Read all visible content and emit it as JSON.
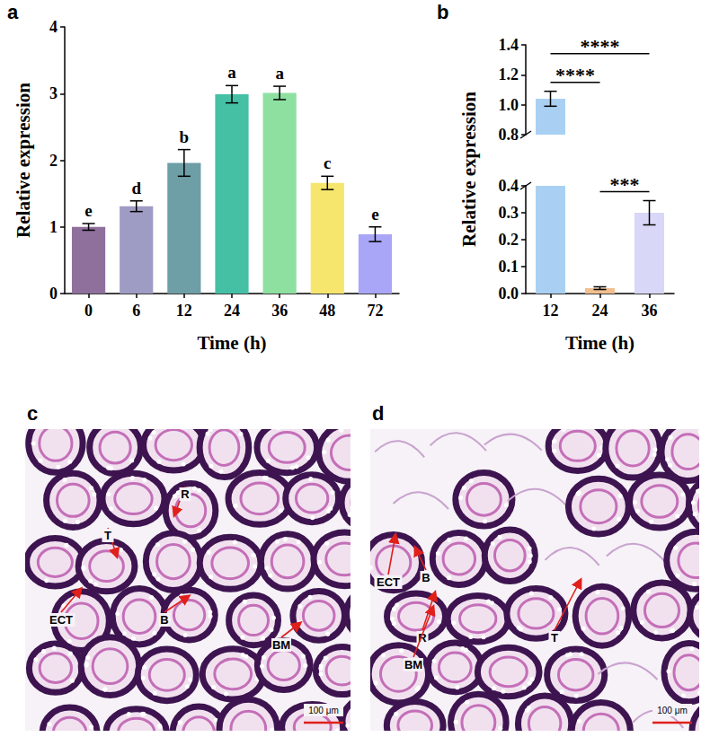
{
  "chart_data": [
    {
      "panel": "a",
      "type": "bar",
      "categories": [
        "0",
        "6",
        "12",
        "24",
        "36",
        "48",
        "72"
      ],
      "values": [
        1.0,
        1.31,
        1.96,
        2.99,
        3.01,
        1.66,
        0.89
      ],
      "errors": [
        0.05,
        0.08,
        0.2,
        0.13,
        0.1,
        0.1,
        0.11
      ],
      "letters": [
        "e",
        "d",
        "b",
        "a",
        "a",
        "c",
        "e"
      ],
      "colors": [
        "#8f6f9c",
        "#9e9cc4",
        "#6e9ea6",
        "#45c0a5",
        "#8ee0a0",
        "#f6e66d",
        "#aaa6f7"
      ],
      "x_label": "Time (h)",
      "y_label": "Relative expression",
      "ylim": [
        0,
        4
      ],
      "yticks": [
        0,
        1,
        2,
        3,
        4
      ],
      "grid": false
    },
    {
      "panel": "b",
      "type": "bar",
      "categories": [
        "12",
        "24",
        "36"
      ],
      "values": [
        1.04,
        0.02,
        0.3
      ],
      "errors": [
        0.05,
        0.005,
        0.045
      ],
      "colors": [
        "#a9d0f2",
        "#f2bf8e",
        "#d9d7f7"
      ],
      "x_label": "Time (h)",
      "y_label": "Relative expression",
      "ylim": [
        0,
        1.4
      ],
      "y_break": [
        0.4,
        0.8
      ],
      "yticks": [
        {
          "value": 0,
          "label": "0.0"
        },
        0.1,
        0.2,
        0.3,
        0.4,
        0.8,
        {
          "value": 1,
          "label": "1.0"
        },
        1.2,
        1.4
      ],
      "significance": [
        {
          "pair": [
            "12",
            "36"
          ],
          "label": "****"
        },
        {
          "pair": [
            "12",
            "24"
          ],
          "label": "****"
        },
        {
          "pair": [
            "24",
            "36"
          ],
          "label": "***"
        }
      ],
      "grid": false
    }
  ],
  "images": [
    {
      "panel": "c",
      "labels": [
        "R",
        "T",
        "ECT",
        "B",
        "BM"
      ],
      "scale_bar": "100 μm"
    },
    {
      "panel": "d",
      "labels": [
        "ECT",
        "B",
        "R",
        "BM",
        "T"
      ],
      "scale_bar": "100 μm"
    }
  ]
}
